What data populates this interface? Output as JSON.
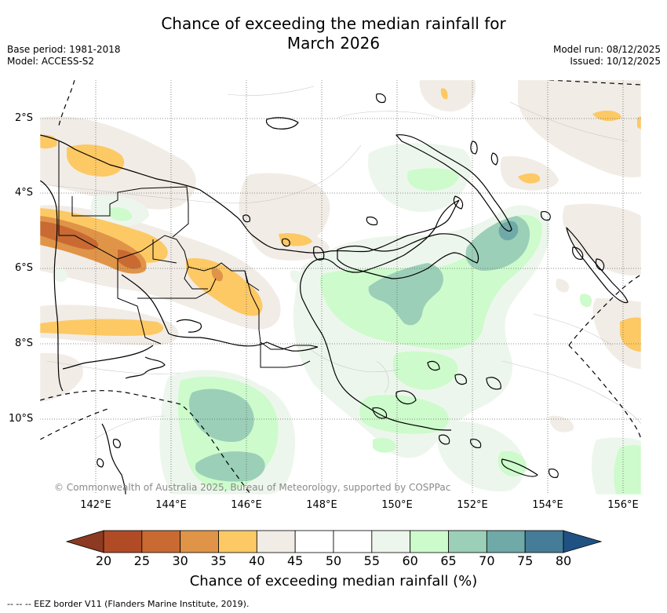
{
  "title": {
    "line1": "Chance of exceeding the median rainfall for",
    "line2": "March 2026"
  },
  "meta": {
    "base_period": "Base period: 1981-2018",
    "model": "Model: ACCESS-S2",
    "model_run": "Model run: 08/12/2025",
    "issued": "Issued: 10/12/2025"
  },
  "map": {
    "lat_labels": [
      "2°S",
      "4°S",
      "6°S",
      "8°S",
      "10°S"
    ],
    "lon_labels": [
      "142°E",
      "144°E",
      "146°E",
      "148°E",
      "150°E",
      "152°E",
      "154°E",
      "156°E"
    ],
    "copyright": "© Commonwealth of Australia 2025, Bureau of Meteorology, supported by COSPPac"
  },
  "colorbar": {
    "ticks": [
      "20",
      "25",
      "30",
      "35",
      "40",
      "45",
      "50",
      "55",
      "60",
      "65",
      "70",
      "75",
      "80"
    ],
    "colors": [
      "#b14b26",
      "#c96a33",
      "#e09448",
      "#fdc965",
      "#f1ece6",
      "#ffffff",
      "#ffffff",
      "#edf6ec",
      "#cdfbcc",
      "#9bcfb8",
      "#6fa9a8",
      "#457c97"
    ],
    "under_color": "#8c3a21",
    "over_color": "#1f5283",
    "label": "Chance of exceeding median rainfall (%)"
  },
  "footnote": "--  --  -- EEZ border V11 (Flanders Marine Institute, 2019)."
}
